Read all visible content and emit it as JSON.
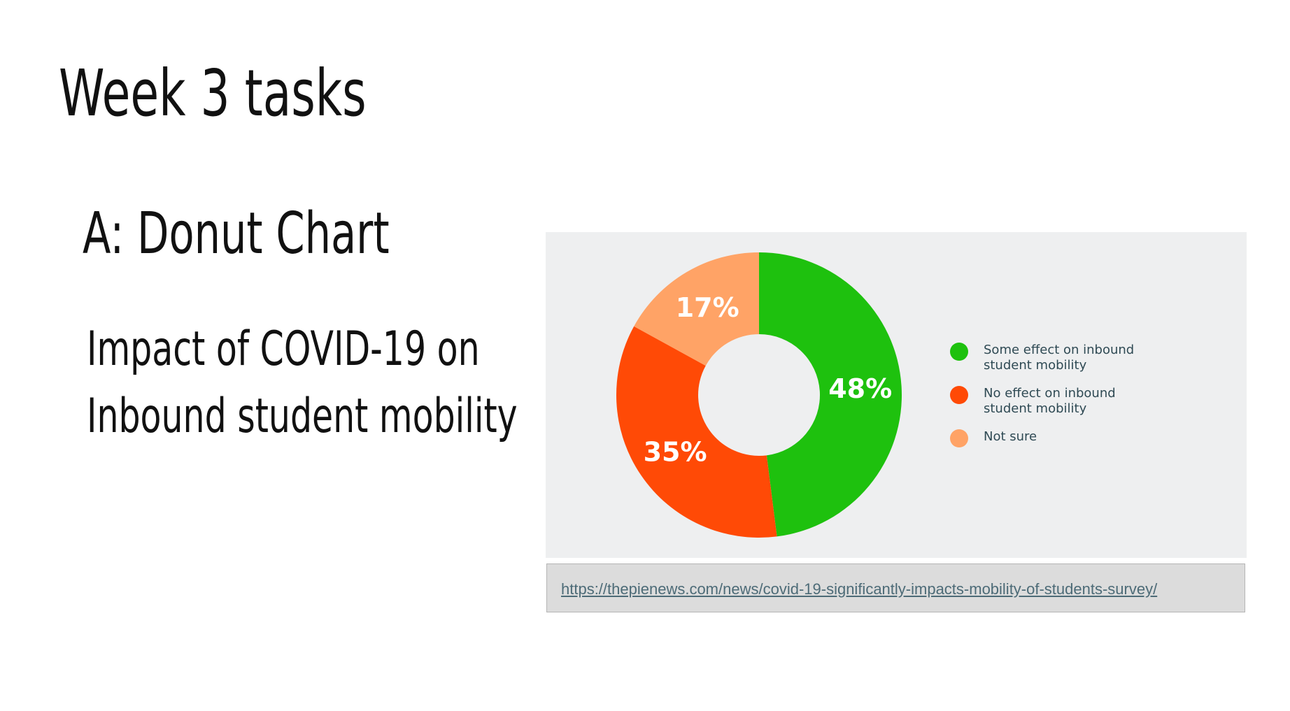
{
  "slide": {
    "title": "Week 3 tasks",
    "subtitle": "A: Donut Chart",
    "description_lines": [
      "Impact of COVID-19 on",
      "Inbound student mobility"
    ]
  },
  "chart_data": {
    "type": "pie",
    "variant": "donut",
    "labels": [
      "Some effect on inbound student mobility",
      "No effect on inbound student mobility",
      "Not sure"
    ],
    "values": [
      48,
      35,
      17
    ],
    "value_labels": [
      "48%",
      "35%",
      "17%"
    ],
    "colors": [
      "#1ec10e",
      "#ff4a06",
      "#ffa366"
    ],
    "legend": {
      "placement": "right",
      "entries": [
        {
          "line1": "Some effect on inbound",
          "line2": "student mobility"
        },
        {
          "line1": "No effect on inbound",
          "line2": "student mobility"
        },
        {
          "line1": "Not sure",
          "line2": ""
        }
      ]
    }
  },
  "source": {
    "url_text": "https://thepienews.com/news/covid-19-significantly-impacts-mobility-of-students-survey/"
  }
}
